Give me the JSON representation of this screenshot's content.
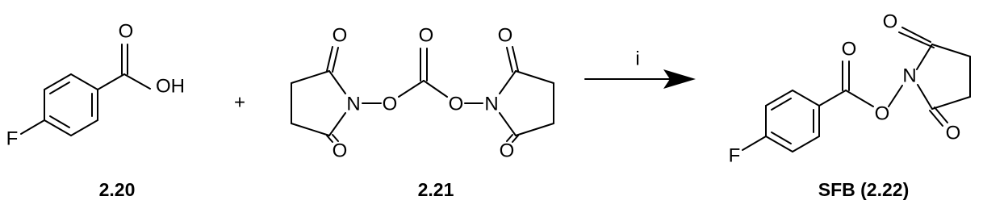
{
  "plus": "+",
  "reagent": "i",
  "compounds": [
    {
      "label": "2.20",
      "atoms": [
        "O",
        "OH",
        "F"
      ]
    },
    {
      "label": "2.21",
      "atoms": [
        "O",
        "O",
        "N",
        "O",
        "O",
        "O",
        "N",
        "O",
        "O"
      ]
    },
    {
      "label": "SFB (2.22)",
      "atoms": [
        "O",
        "F",
        "O",
        "N",
        "O",
        "O"
      ]
    }
  ]
}
